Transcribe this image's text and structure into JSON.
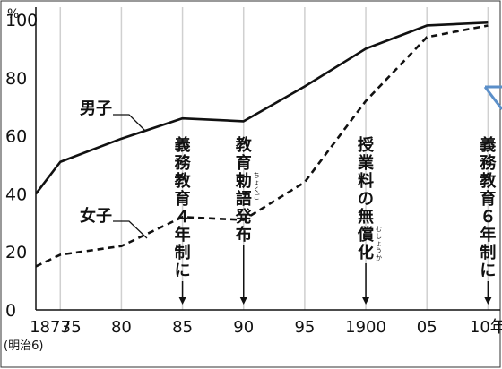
{
  "chart_data": {
    "type": "line",
    "title": "",
    "xlabel": "",
    "ylabel": "%",
    "ylim": [
      0,
      100
    ],
    "yticks": [
      0,
      20,
      40,
      60,
      80,
      100
    ],
    "x_ticks": [
      {
        "x": 1873,
        "label": "1873"
      },
      {
        "x": 1875,
        "label": "75"
      },
      {
        "x": 1880,
        "label": "80"
      },
      {
        "x": 1885,
        "label": "85"
      },
      {
        "x": 1890,
        "label": "90"
      },
      {
        "x": 1895,
        "label": "95"
      },
      {
        "x": 1900,
        "label": "1900"
      },
      {
        "x": 1905,
        "label": "05"
      },
      {
        "x": 1910,
        "label": "10年"
      }
    ],
    "x_sublabel": "(明治6)",
    "grid": "vertical",
    "series": [
      {
        "name": "男子",
        "style": "solid",
        "x": [
          1873,
          1875,
          1880,
          1885,
          1890,
          1895,
          1900,
          1905,
          1910
        ],
        "values": [
          40,
          51,
          59,
          66,
          65,
          77,
          90,
          98,
          99
        ]
      },
      {
        "name": "女子",
        "style": "dashed",
        "x": [
          1873,
          1875,
          1880,
          1885,
          1890,
          1895,
          1900,
          1905,
          1910
        ],
        "values": [
          15,
          19,
          22,
          32,
          31,
          44,
          72,
          94,
          98
        ]
      }
    ],
    "events": [
      {
        "x": 1885,
        "text": "義務教育４年制に"
      },
      {
        "x": 1890,
        "text": "教育勅語発布",
        "ruby": "ちょくご"
      },
      {
        "x": 1900,
        "text": "授業料の無償化",
        "ruby": "むしょうか"
      },
      {
        "x": 1910,
        "text": "義務教育６年制に"
      }
    ]
  }
}
